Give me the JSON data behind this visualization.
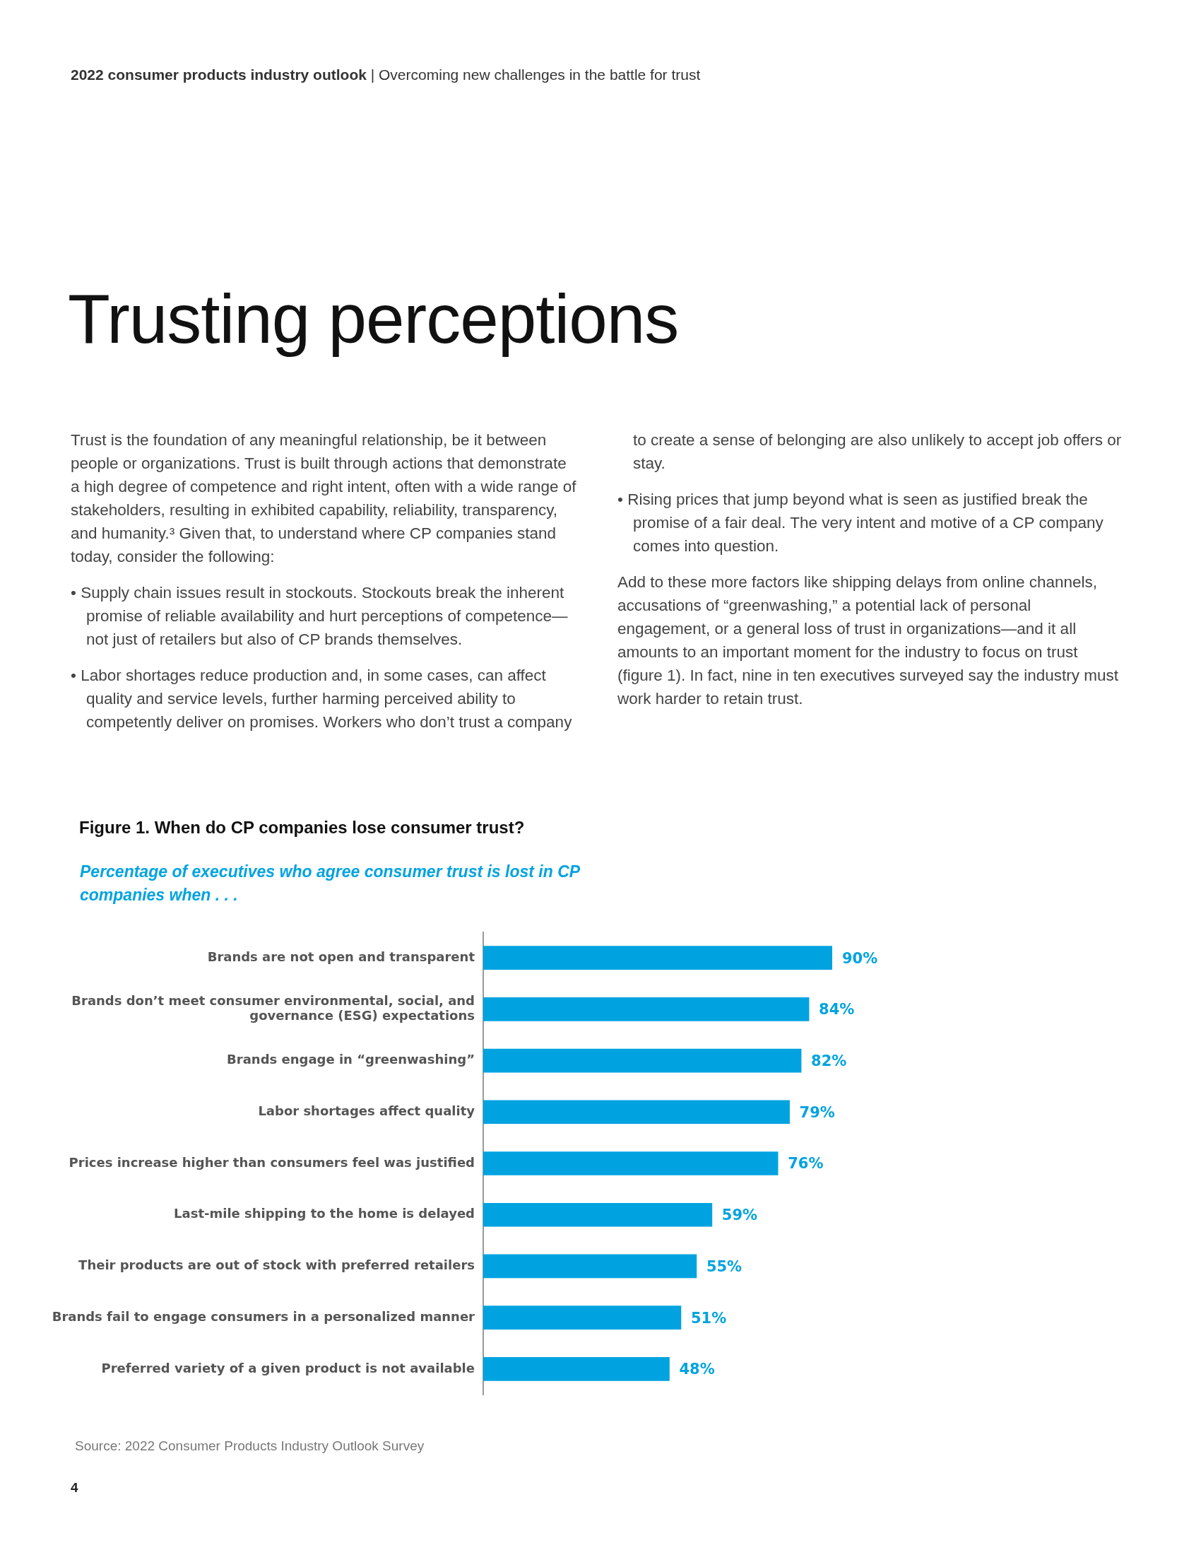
{
  "chart_data": {
    "type": "bar",
    "orientation": "horizontal",
    "title": "Figure 1. When do CP companies lose consumer trust?",
    "subtitle": "Percentage of executives who agree consumer trust is lost in CP companies when . . .",
    "categories": [
      "Brands are not open and transparent",
      "Brands don’t meet consumer environmental, social, and governance (ESG) expectations",
      "Brands engage in “greenwashing”",
      "Labor shortages affect quality",
      "Prices increase higher than consumers feel was justified",
      "Last-mile shipping to the home is delayed",
      "Their products are out of stock with preferred retailers",
      "Brands fail to engage consumers in a personalized manner",
      "Preferred variety of a given product is not available"
    ],
    "series": [
      {
        "color": "#00a3e0",
        "values": [
          90,
          84,
          82,
          79,
          76,
          59,
          55,
          51,
          48
        ],
        "value_labels": [
          "90%",
          "84%",
          "82%",
          "79%",
          "76%",
          "59%",
          "55%",
          "51%",
          "48%"
        ]
      }
    ],
    "grid": false,
    "legend": false,
    "tick_labels": "y",
    "annotations": [
      "2022 consumer products industry outlook | Overcoming new challenges in the battle for trust",
      "Trusting perceptions",
      "Trust is the foundation of any meaningful relationship, be it between people or organizations. Trust is built through actions that demonstrate a high degree of competence and right intent, often with a wide range of stakeholders, resulting in exhibited capability, reliability, transparency, and humanity.³ Given that, to understand where CP companies stand today, consider the following:",
      "• Supply chain issues result in stockouts. Stockouts break the inherent promise of reliable availability and hurt perceptions of competence—not just of retailers but also of CP brands themselves.",
      "• Labor shortages reduce production and, in some cases, can affect quality and service levels, further harming perceived ability to competently deliver on promises. Workers who don’t trust a company to create a sense of belonging are also unlikely to accept job offers or stay.",
      "• Rising prices that jump beyond what is seen as justified break the promise of a fair deal. The very intent and motive of a CP company comes into question.",
      "Add to these more factors like shipping delays from online channels, accusations of “greenwashing,” a potential lack of personal engagement, or a general loss of trust in organizations—and it all amounts to an important moment for the industry to focus on trust (figure 1). In fact, nine in ten executives surveyed say the industry must work harder to retain trust.",
      "Source: 2022 Consumer Products Industry Outlook Survey",
      "4"
    ]
  }
}
